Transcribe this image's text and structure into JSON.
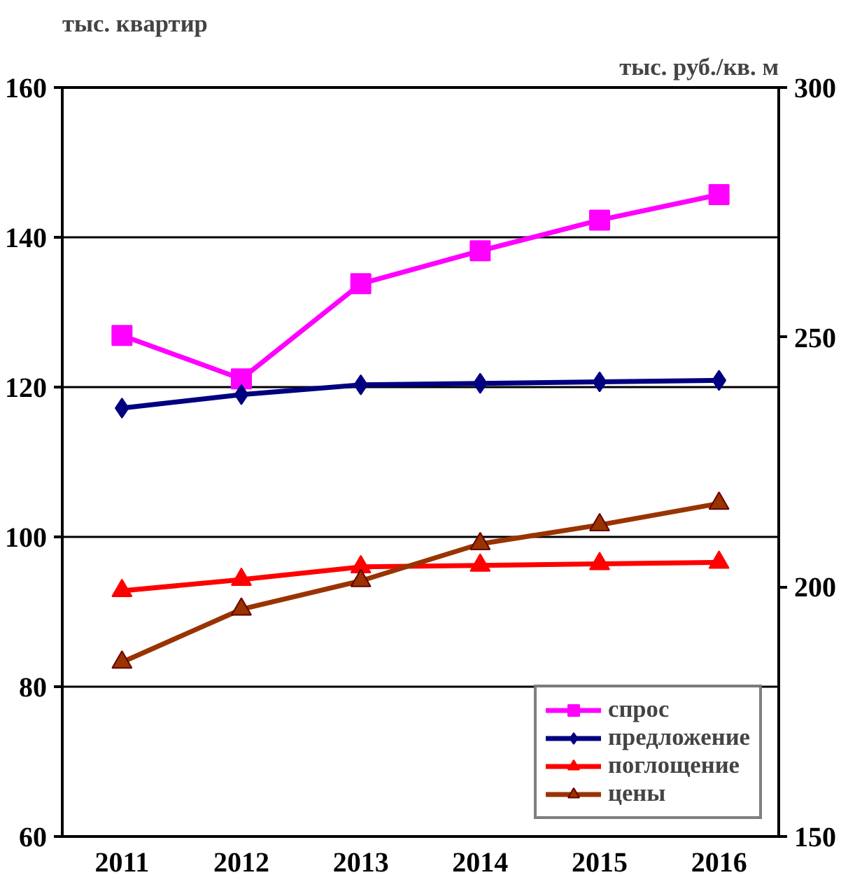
{
  "chart_data": {
    "type": "line",
    "ylabel": "тыс. квартир",
    "y2label": "тыс. руб./кв. м",
    "categories": [
      "2011",
      "2012",
      "2013",
      "2014",
      "2015",
      "2016"
    ],
    "ylim": [
      60,
      160
    ],
    "yticks": [
      60,
      80,
      100,
      120,
      140,
      160
    ],
    "y2lim": [
      150,
      300
    ],
    "y2ticks": [
      150,
      200,
      250,
      300
    ],
    "grid": "y",
    "legend": "bottom right",
    "line_style": "solid",
    "series": [
      {
        "name": "спрос",
        "color": "#ff00ff",
        "marker": "square",
        "values": [
          126.9,
          121.1,
          133.8,
          138.2,
          142.3,
          145.7
        ]
      },
      {
        "name": "предложение",
        "color": "#000080",
        "marker": "diamond",
        "values": [
          117.2,
          119.0,
          120.3,
          120.5,
          120.7,
          120.9
        ]
      },
      {
        "name": "поглощение",
        "color": "#ff0000",
        "marker": "triangle",
        "values": [
          92.8,
          94.3,
          96.0,
          96.2,
          96.4,
          96.6
        ]
      },
      {
        "name": "цены",
        "color": "#993300",
        "marker": "triangle",
        "axis": "y2",
        "values": [
          184.9,
          195.5,
          201.2,
          208.6,
          212.4,
          216.7
        ]
      }
    ]
  }
}
